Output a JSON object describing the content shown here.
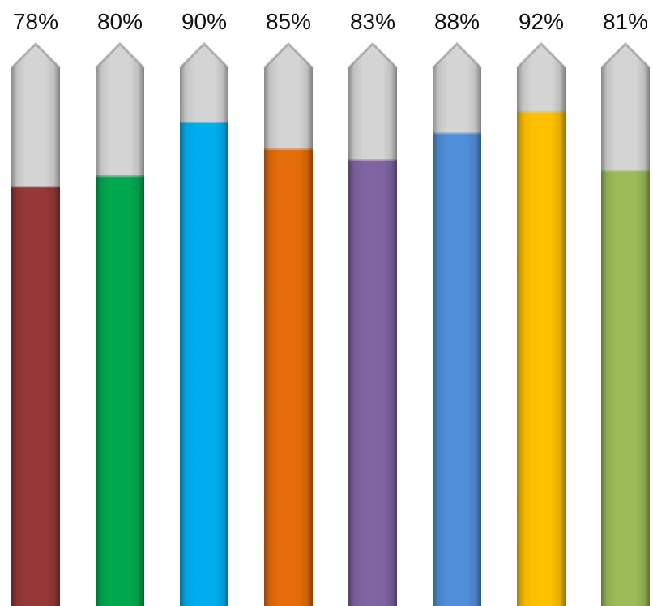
{
  "chart_data": {
    "type": "bar",
    "title": "",
    "xlabel": "",
    "ylabel": "",
    "ylim": [
      0,
      100
    ],
    "grid": false,
    "legend": "none",
    "values": [
      78,
      80,
      90,
      85,
      83,
      88,
      92,
      81
    ],
    "labels": [
      "78%",
      "80%",
      "90%",
      "85%",
      "83%",
      "88%",
      "92%",
      "81%"
    ],
    "colors": [
      "#963838",
      "#00A84F",
      "#00AEEF",
      "#E46C0A",
      "#8064A2",
      "#4F8ED8",
      "#FFC000",
      "#9BBB59"
    ],
    "track_color": "#D4D4D4"
  }
}
